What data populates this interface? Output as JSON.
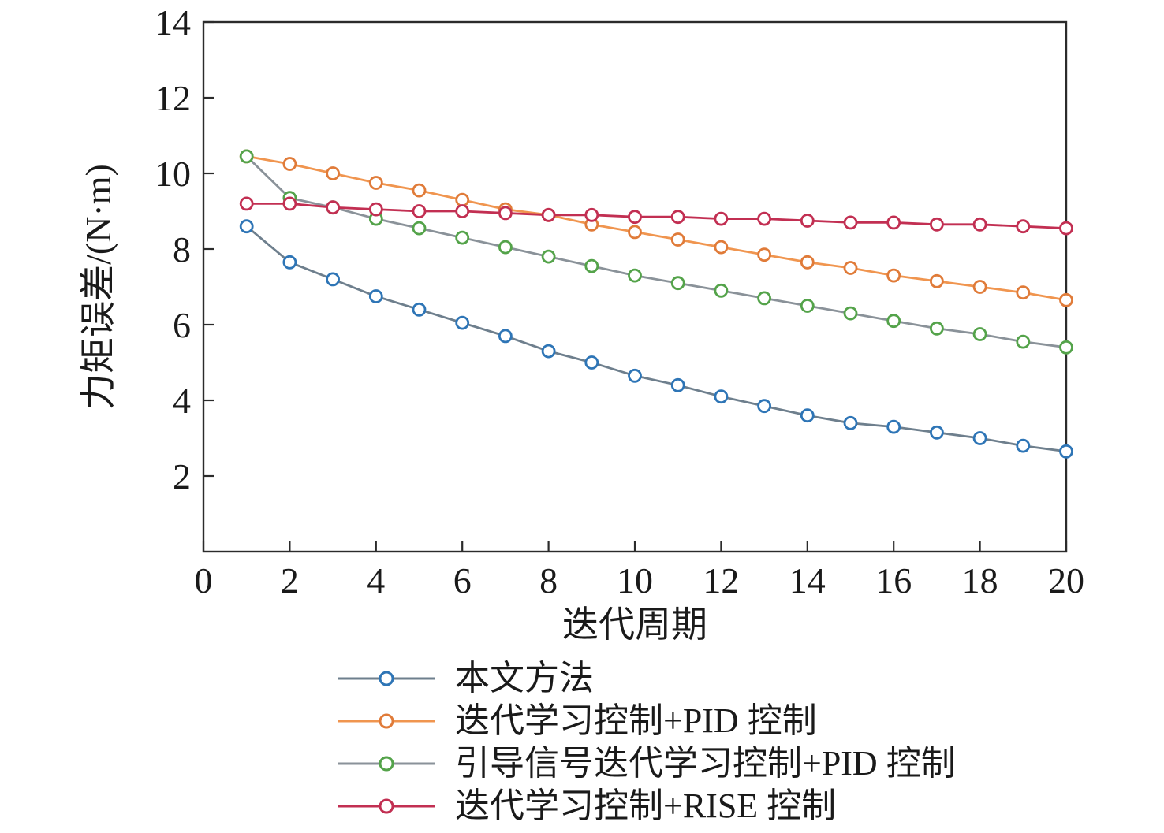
{
  "chart_data": {
    "type": "line",
    "x": [
      1,
      2,
      3,
      4,
      5,
      6,
      7,
      8,
      9,
      10,
      11,
      12,
      13,
      14,
      15,
      16,
      17,
      18,
      19,
      20
    ],
    "series": [
      {
        "name": "本文方法",
        "line_color": "#6e7f8d",
        "marker_color": "#2e75b6",
        "values": [
          8.6,
          7.65,
          7.2,
          6.75,
          6.4,
          6.05,
          5.7,
          5.3,
          5.0,
          4.65,
          4.4,
          4.1,
          3.85,
          3.6,
          3.4,
          3.3,
          3.15,
          3.0,
          2.8,
          2.65
        ]
      },
      {
        "name": "迭代学习控制+PID 控制",
        "line_color": "#f0954f",
        "marker_color": "#e07b39",
        "values": [
          10.45,
          10.25,
          10.0,
          9.75,
          9.55,
          9.3,
          9.05,
          8.9,
          8.65,
          8.45,
          8.25,
          8.05,
          7.85,
          7.65,
          7.5,
          7.3,
          7.15,
          7.0,
          6.85,
          6.65
        ]
      },
      {
        "name": "引导信号迭代学习控制+PID 控制",
        "line_color": "#8a9299",
        "marker_color": "#54a34a",
        "values": [
          10.45,
          9.35,
          9.1,
          8.8,
          8.55,
          8.3,
          8.05,
          7.8,
          7.55,
          7.3,
          7.1,
          6.9,
          6.7,
          6.5,
          6.3,
          6.1,
          5.9,
          5.75,
          5.55,
          5.4
        ]
      },
      {
        "name": "迭代学习控制+RISE 控制",
        "line_color": "#c22f52",
        "marker_color": "#c22f52",
        "values": [
          9.2,
          9.2,
          9.1,
          9.05,
          9.0,
          9.0,
          8.95,
          8.9,
          8.9,
          8.85,
          8.85,
          8.8,
          8.8,
          8.75,
          8.7,
          8.7,
          8.65,
          8.65,
          8.6,
          8.55
        ]
      }
    ],
    "title": "",
    "xlabel": "迭代周期",
    "ylabel": "力矩误差/(N·m)",
    "xlim": [
      0,
      20
    ],
    "ylim": [
      0,
      14
    ],
    "xticks": [
      0,
      2,
      4,
      6,
      8,
      10,
      12,
      14,
      16,
      18,
      20
    ],
    "yticks": [
      2,
      4,
      6,
      8,
      10,
      12,
      14
    ],
    "grid": "off",
    "legend_position": "below",
    "frame_color": "#2b2b2b",
    "tick_label_color": "#1a1a1a"
  }
}
